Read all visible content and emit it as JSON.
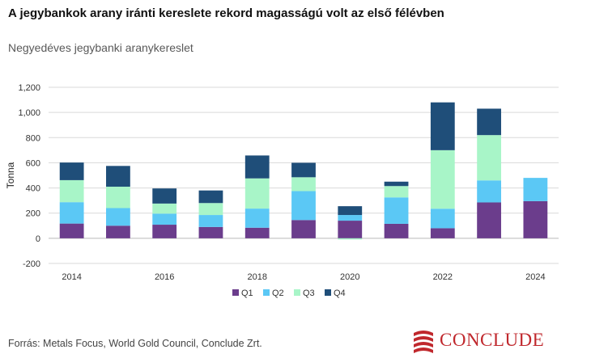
{
  "header": {
    "title": "A jegybankok arany iránti kereslete rekord magasságú volt az első félévben",
    "subtitle": "Negyedéves jegybanki aranykereslet"
  },
  "footer": {
    "source": "Forrás: Metals Focus, World Gold Council, Conclude Zrt.",
    "logo_text": "CONCLUDE"
  },
  "colors": {
    "Q1": "#6b3d8c",
    "Q2": "#5bc8f5",
    "Q3": "#a8f5c8",
    "Q4": "#1f4e79",
    "logo": "#c0282d"
  },
  "chart_data": {
    "type": "bar",
    "stacked": true,
    "categories": [
      "2014",
      "2015",
      "2016",
      "2017",
      "2018",
      "2019",
      "2020",
      "2021",
      "2022",
      "2023",
      "2024"
    ],
    "x_tick_labels": [
      "2014",
      "",
      "2016",
      "",
      "2018",
      "",
      "2020",
      "",
      "2022",
      "",
      "2024"
    ],
    "ylabel": "Tonna",
    "ylim": [
      -200,
      1200
    ],
    "y_ticks": [
      "-200",
      "0",
      "200",
      "400",
      "600",
      "800",
      "1,000",
      "1,200"
    ],
    "grid": true,
    "legend_position": "bottom",
    "series": [
      {
        "name": "Q1",
        "values": [
          117,
          100,
          108,
          90,
          84,
          145,
          140,
          115,
          80,
          285,
          295
        ]
      },
      {
        "name": "Q2",
        "values": [
          170,
          140,
          88,
          95,
          152,
          230,
          45,
          210,
          155,
          175,
          185
        ]
      },
      {
        "name": "Q3",
        "values": [
          175,
          170,
          80,
          95,
          240,
          110,
          -10,
          90,
          465,
          360,
          null
        ]
      },
      {
        "name": "Q4",
        "values": [
          140,
          165,
          120,
          100,
          182,
          115,
          70,
          35,
          380,
          210,
          null
        ]
      }
    ]
  }
}
